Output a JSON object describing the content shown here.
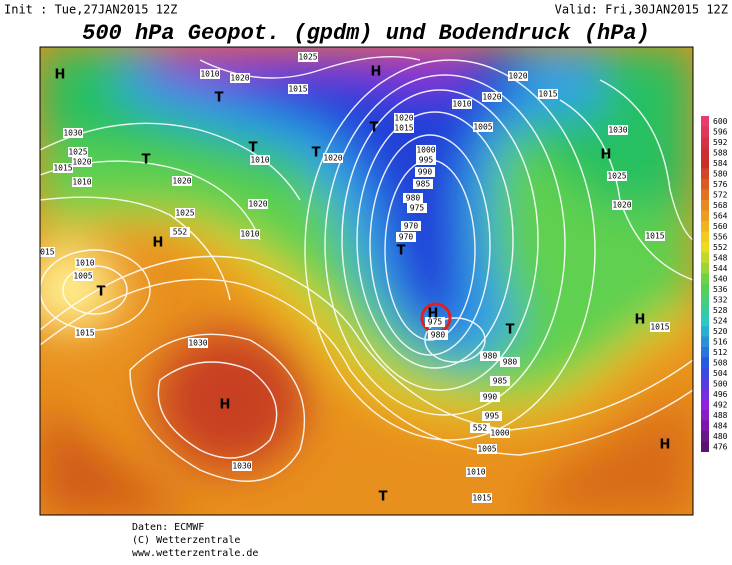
{
  "header": {
    "init": "Init : Tue,27JAN2015 12Z",
    "valid": "Valid: Fri,30JAN2015 12Z",
    "title": "500 hPa Geopot. (gpdm) und Bodendruck (hPa)"
  },
  "isobar_labels": [
    "1025",
    "1010",
    "1020",
    "1015",
    "1010",
    "1020",
    "1020",
    "1015",
    "1020",
    "1015",
    "1005",
    "1030",
    "1025",
    "1020",
    "1015",
    "1010",
    "1010",
    "1020",
    "1000",
    "995",
    "990",
    "985",
    "980",
    "975",
    "970",
    "970",
    "1020",
    "1025",
    "1020",
    "1010",
    "1015",
    "1015",
    "1010",
    "1005",
    "1015",
    "1030",
    "1030",
    "1030",
    "1025",
    "1020",
    "1015",
    "975",
    "980",
    "980",
    "980",
    "985",
    "990",
    "995",
    "1000",
    "1005",
    "1010",
    "1015",
    "552",
    "552"
  ],
  "pressure_centers": [
    "H",
    "H",
    "T",
    "T",
    "T",
    "T",
    "H",
    "H",
    "T",
    "T",
    "H",
    "T",
    "H",
    "H",
    "H",
    "T",
    "T"
  ],
  "colorbar": [
    600,
    596,
    592,
    588,
    584,
    580,
    576,
    572,
    568,
    564,
    560,
    556,
    552,
    548,
    544,
    540,
    536,
    532,
    528,
    524,
    520,
    516,
    512,
    508,
    504,
    500,
    496,
    492,
    488,
    484,
    480,
    476
  ],
  "footer": [
    "Daten: ECMWF",
    "(C) Wetterzentrale",
    "www.wetterzentrale.de"
  ]
}
